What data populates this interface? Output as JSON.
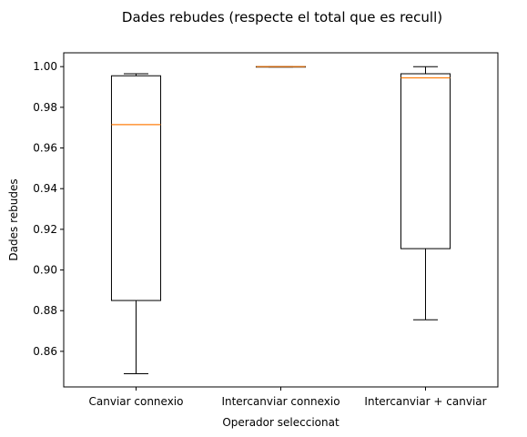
{
  "chart_data": {
    "type": "box",
    "title": "Dades rebudes (respecte el total que es recull)",
    "xlabel": "Operador seleccionat",
    "ylabel": "Dades rebudes",
    "categories": [
      "Canviar connexio",
      "Intercanviar connexio",
      "Intercanviar + canviar"
    ],
    "ylim": [
      0.8425,
      1.0068
    ],
    "yticks": [
      0.86,
      0.88,
      0.9,
      0.92,
      0.94,
      0.96,
      0.98,
      1.0
    ],
    "ytick_labels": [
      "0.86",
      "0.88",
      "0.90",
      "0.92",
      "0.94",
      "0.96",
      "0.98",
      "1.00"
    ],
    "grid": false,
    "boxes": [
      {
        "whisker_low": 0.849,
        "q1": 0.885,
        "median": 0.9715,
        "q3": 0.9955,
        "whisker_high": 0.9965
      },
      {
        "whisker_low": 0.9998,
        "q1": 0.9999,
        "median": 1.0,
        "q3": 1.0,
        "whisker_high": 1.0
      },
      {
        "whisker_low": 0.8755,
        "q1": 0.9105,
        "median": 0.9945,
        "q3": 0.9965,
        "whisker_high": 1.0
      }
    ],
    "colors": {
      "box": "#000000",
      "median": "#ff7f0e"
    }
  }
}
